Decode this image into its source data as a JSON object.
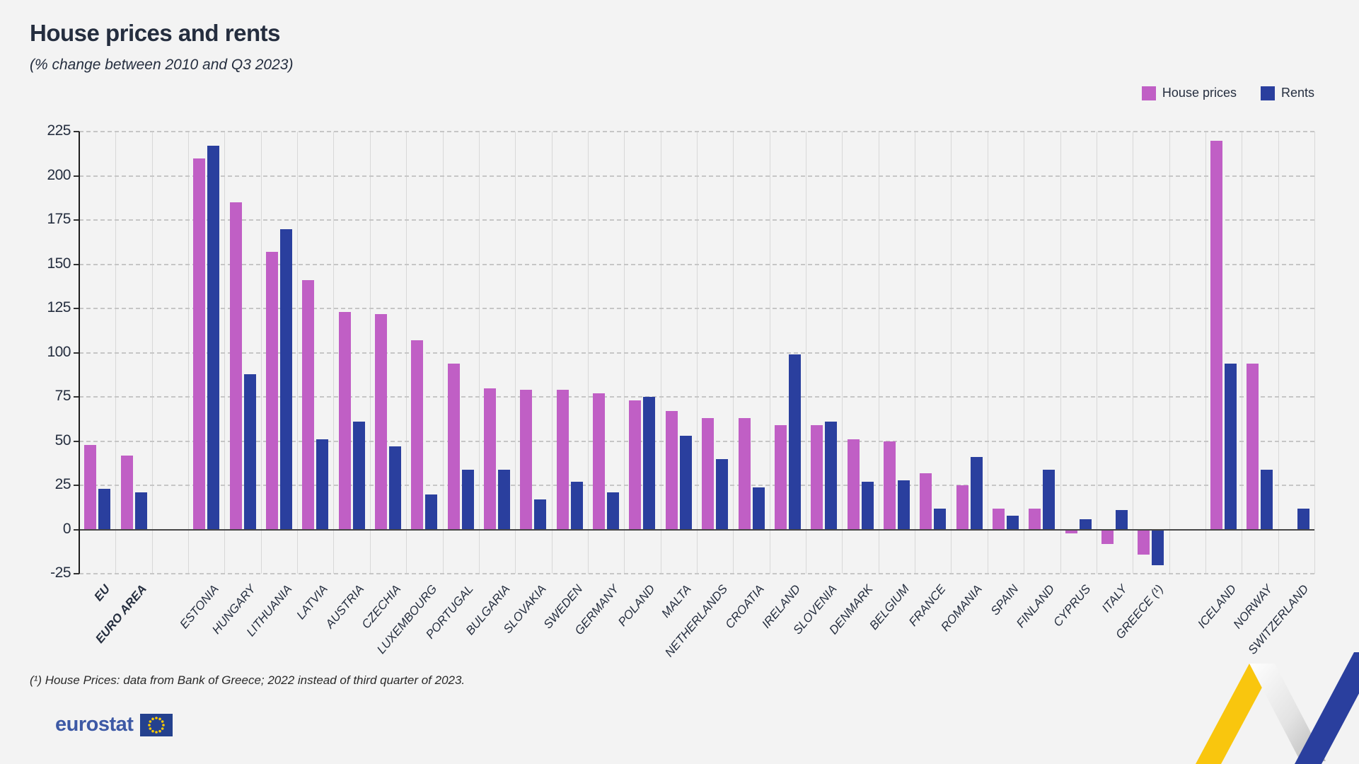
{
  "header": {
    "title": "House prices and rents",
    "subtitle": "(% change between 2010 and Q3 2023)"
  },
  "legend": {
    "items": [
      {
        "label": "House prices",
        "color": "#c05fc5"
      },
      {
        "label": "Rents",
        "color": "#2a3f9e"
      }
    ]
  },
  "footnote": "(¹) House Prices: data from Bank of Greece; 2022 instead of third quarter of 2023.",
  "logo": {
    "text": "eurostat"
  },
  "colors": {
    "house_prices": "#c05fc5",
    "rents": "#2a3f9e",
    "background": "#f3f3f3",
    "text": "#252e3f",
    "ribbon_yellow": "#f9c60e",
    "ribbon_blue": "#2a3f9e",
    "logo_blue": "#24418e",
    "star_yellow": "#ffcc00"
  },
  "chart_data": {
    "type": "bar",
    "title": "House prices and rents",
    "subtitle": "(% change between 2010 and Q3 2023)",
    "xlabel": "",
    "ylabel": "",
    "ylim": [
      -25,
      225
    ],
    "ytick_step": 25,
    "grid": "horizontal dashed lines, vertical solid column separators",
    "legend_position": "top-right",
    "categories": [
      "EU",
      "EURO AREA",
      "",
      "ESTONIA",
      "HUNGARY",
      "LITHUANIA",
      "LATVIA",
      "AUSTRIA",
      "CZECHIA",
      "LUXEMBOURG",
      "PORTUGAL",
      "BULGARIA",
      "SLOVAKIA",
      "SWEDEN",
      "GERMANY",
      "POLAND",
      "MALTA",
      "NETHERLANDS",
      "CROATIA",
      "IRELAND",
      "SLOVENIA",
      "DENMARK",
      "BELGIUM",
      "FRANCE",
      "ROMANIA",
      "SPAIN",
      "FINLAND",
      "CYPRUS",
      "ITALY",
      "GREECE (¹)",
      "",
      "ICELAND",
      "NORWAY",
      "SWITZERLAND"
    ],
    "bold_categories": [
      "EU",
      "EURO AREA"
    ],
    "series": [
      {
        "name": "House prices",
        "color": "#c05fc5",
        "values": [
          48,
          42,
          null,
          210,
          185,
          157,
          141,
          123,
          122,
          107,
          94,
          80,
          79,
          79,
          77,
          73,
          67,
          63,
          63,
          59,
          59,
          51,
          50,
          32,
          25,
          12,
          12,
          -2,
          -8,
          -14,
          null,
          220,
          94,
          null
        ]
      },
      {
        "name": "Rents",
        "color": "#2a3f9e",
        "values": [
          23,
          21,
          null,
          217,
          88,
          170,
          51,
          61,
          47,
          20,
          34,
          34,
          17,
          27,
          21,
          75,
          53,
          40,
          24,
          99,
          61,
          27,
          28,
          12,
          41,
          8,
          34,
          6,
          11,
          -20,
          null,
          94,
          34,
          12
        ]
      }
    ]
  }
}
